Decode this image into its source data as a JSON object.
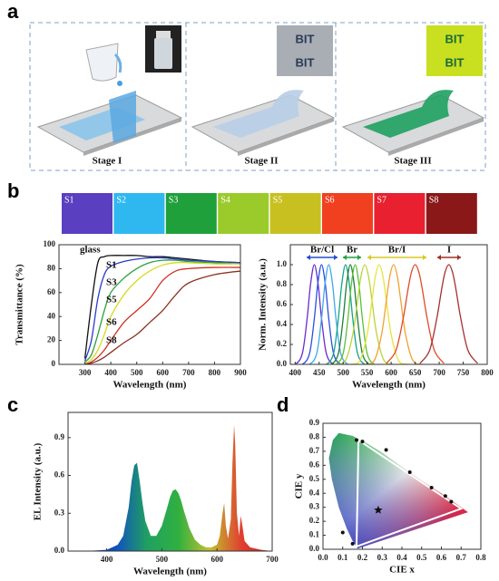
{
  "labels": {
    "a": "a",
    "b": "b",
    "c": "c",
    "d": "d"
  },
  "stages": [
    "Stage I",
    "Stage II",
    "Stage III"
  ],
  "insets": [
    "BIT",
    "BIT",
    "BIT",
    "BIT"
  ],
  "samples": {
    "names": [
      "S1",
      "S2",
      "S3",
      "S4",
      "S5",
      "S6",
      "S7",
      "S8"
    ],
    "colors": [
      "#5a3fc0",
      "#2fb8f0",
      "#1fa03a",
      "#9acb2a",
      "#c8c020",
      "#f04020",
      "#e82030",
      "#8a1818"
    ]
  },
  "chart_data": [
    {
      "type": "line",
      "xlabel": "Wavelength (nm)",
      "ylabel": "Transmittance (%)",
      "xlim": [
        200,
        900
      ],
      "ylim": [
        0,
        100
      ],
      "xticks": [
        300,
        400,
        500,
        600,
        700,
        800,
        900
      ],
      "yticks": [
        0,
        20,
        40,
        60,
        80,
        100
      ],
      "x": [
        300,
        325,
        350,
        375,
        400,
        450,
        500,
        550,
        600,
        650,
        700,
        800,
        900
      ],
      "series": [
        {
          "name": "glass",
          "color": "#111111",
          "values": [
            5,
            50,
            85,
            90,
            91,
            91,
            91,
            90,
            90,
            89,
            88,
            86,
            85
          ]
        },
        {
          "name": "S1",
          "color": "#2a3ad0",
          "values": [
            3,
            20,
            55,
            75,
            82,
            86,
            88,
            89,
            89,
            88,
            87,
            86,
            85
          ]
        },
        {
          "name": "S3",
          "color": "#2aa03a",
          "values": [
            2,
            8,
            25,
            45,
            60,
            72,
            80,
            85,
            87,
            87,
            86,
            85,
            84
          ]
        },
        {
          "name": "S5",
          "color": "#d8d820",
          "values": [
            1,
            4,
            12,
            25,
            40,
            58,
            70,
            78,
            83,
            85,
            85,
            84,
            84
          ]
        },
        {
          "name": "S6",
          "color": "#d03020",
          "values": [
            0,
            2,
            6,
            12,
            20,
            35,
            45,
            55,
            70,
            78,
            80,
            81,
            81
          ]
        },
        {
          "name": "S8",
          "color": "#8a3020",
          "values": [
            0,
            1,
            3,
            6,
            10,
            18,
            25,
            35,
            45,
            58,
            68,
            75,
            78
          ]
        }
      ]
    },
    {
      "type": "line",
      "xlabel": "Wavelength (nm)",
      "ylabel": "Norm. Intensity (a.u.)",
      "xlim": [
        390,
        800
      ],
      "ylim": [
        0,
        1.2
      ],
      "xticks": [
        400,
        450,
        500,
        550,
        600,
        650,
        700,
        750,
        800
      ],
      "yticks": [
        {
          "value": 0,
          "label": "0.0"
        },
        0.2,
        0.4,
        0.6,
        0.8,
        {
          "value": 1,
          "label": "1.0"
        }
      ],
      "annotations": [
        {
          "text": "Br/Cl",
          "color": "#2050d0"
        },
        {
          "text": "Br",
          "color": "#20a040"
        },
        {
          "text": "Br/I",
          "color": "#d8c820"
        },
        {
          "text": "I",
          "color": "#a03020"
        }
      ],
      "series": [
        {
          "color": "#6a2bd0",
          "x": [
            380,
            400,
            415,
            425,
            432,
            440,
            448,
            455,
            465,
            480,
            500
          ],
          "values": [
            0,
            0,
            0.11,
            0.46,
            0.8,
            1,
            0.8,
            0.46,
            0.11,
            0,
            0
          ]
        },
        {
          "color": "#2a4fe0",
          "x": [
            395,
            415,
            430,
            440,
            447,
            455,
            463,
            470,
            480,
            495,
            515
          ],
          "values": [
            0,
            0,
            0.11,
            0.46,
            0.8,
            1,
            0.8,
            0.46,
            0.11,
            0,
            0
          ]
        },
        {
          "color": "#3fa8ea",
          "x": [
            410,
            430,
            445,
            455,
            462,
            470,
            478,
            485,
            495,
            510,
            530
          ],
          "values": [
            0,
            0,
            0.11,
            0.46,
            0.8,
            1,
            0.8,
            0.46,
            0.11,
            0,
            0
          ]
        },
        {
          "color": "#15a38a",
          "x": [
            445,
            465,
            480,
            490,
            497,
            505,
            513,
            520,
            530,
            545,
            565
          ],
          "values": [
            0,
            0,
            0.11,
            0.46,
            0.8,
            1,
            0.8,
            0.46,
            0.11,
            0,
            0
          ]
        },
        {
          "color": "#1f7f3a",
          "x": [
            455,
            475,
            490,
            500,
            507,
            515,
            523,
            530,
            540,
            555,
            575
          ],
          "values": [
            0,
            0,
            0.11,
            0.46,
            0.8,
            1,
            0.8,
            0.46,
            0.11,
            0,
            0
          ]
        },
        {
          "color": "#5cbf3a",
          "x": [
            465,
            485,
            500,
            510,
            517,
            525,
            533,
            540,
            550,
            565,
            585
          ],
          "values": [
            0,
            0,
            0.11,
            0.46,
            0.8,
            1,
            0.8,
            0.46,
            0.11,
            0,
            0
          ]
        },
        {
          "color": "#b8d43a",
          "x": [
            485,
            505,
            520,
            530,
            537,
            545,
            553,
            560,
            570,
            585,
            605
          ],
          "values": [
            0,
            0.04,
            0.3,
            0.64,
            0.88,
            1,
            0.88,
            0.64,
            0.3,
            0.04,
            0
          ]
        },
        {
          "color": "#e6e43a",
          "x": [
            515,
            535,
            550,
            560,
            567,
            575,
            583,
            590,
            600,
            615,
            635
          ],
          "values": [
            0,
            0.04,
            0.3,
            0.64,
            0.88,
            1,
            0.88,
            0.64,
            0.3,
            0.04,
            0
          ]
        },
        {
          "color": "#f2a030",
          "x": [
            545,
            565,
            580,
            590,
            597,
            605,
            613,
            620,
            630,
            645,
            665
          ],
          "values": [
            0,
            0.04,
            0.3,
            0.64,
            0.88,
            1,
            0.88,
            0.64,
            0.3,
            0.04,
            0
          ]
        },
        {
          "color": "#e24a2a",
          "x": [
            590,
            610,
            625,
            635,
            642,
            650,
            658,
            665,
            675,
            690,
            710
          ],
          "values": [
            0.01,
            0.14,
            0.46,
            0.75,
            0.92,
            1,
            0.92,
            0.75,
            0.46,
            0.14,
            0.01
          ]
        },
        {
          "color": "#a83030",
          "x": [
            660,
            680,
            695,
            705,
            712,
            720,
            728,
            735,
            745,
            760,
            780
          ],
          "values": [
            0.01,
            0.14,
            0.46,
            0.75,
            0.92,
            1,
            0.92,
            0.75,
            0.46,
            0.14,
            0.01
          ]
        }
      ]
    },
    {
      "type": "area",
      "xlabel": "Wavelength (nm)",
      "ylabel": "EL Intensity (a.u.)",
      "xlim": [
        330,
        700
      ],
      "ylim": [
        0,
        1.1
      ],
      "xticks": [
        400,
        500,
        600,
        700
      ],
      "yticks": [
        {
          "value": 0,
          "label": "0.0"
        },
        0.3,
        0.6,
        0.9
      ],
      "colors": [
        "#2030a0",
        "#1050c0",
        "#20a060",
        "#30b040",
        "#c0c030",
        "#e04030",
        "#d02020"
      ],
      "x": [
        360,
        400,
        420,
        430,
        440,
        445,
        450,
        455,
        460,
        465,
        470,
        480,
        490,
        500,
        510,
        515,
        520,
        525,
        530,
        535,
        540,
        550,
        560,
        570,
        580,
        590,
        600,
        605,
        610,
        613,
        616,
        620,
        625,
        628,
        631,
        633,
        636,
        640,
        643,
        646,
        650,
        660,
        680,
        700
      ],
      "values": [
        0,
        0.01,
        0.05,
        0.12,
        0.35,
        0.55,
        0.68,
        0.7,
        0.55,
        0.38,
        0.24,
        0.12,
        0.12,
        0.2,
        0.35,
        0.43,
        0.48,
        0.49,
        0.46,
        0.4,
        0.32,
        0.18,
        0.09,
        0.05,
        0.03,
        0.03,
        0.05,
        0.12,
        0.3,
        0.38,
        0.2,
        0.1,
        0.25,
        0.7,
        1.0,
        0.85,
        0.3,
        0.12,
        0.28,
        0.2,
        0.08,
        0.03,
        0.01,
        0
      ]
    },
    {
      "type": "scatter",
      "xlabel": "CIE x",
      "ylabel": "CIE y",
      "xlim": [
        0,
        0.8
      ],
      "ylim": [
        0,
        0.9
      ],
      "xticks": [
        {
          "value": 0,
          "label": "0.0"
        },
        0.1,
        0.2,
        0.3,
        0.4,
        0.5,
        0.6,
        0.7,
        0.8
      ],
      "yticks": [
        {
          "value": 0,
          "label": "0.0"
        },
        0.1,
        0.2,
        0.3,
        0.4,
        0.5,
        0.6,
        0.7,
        0.8,
        0.9
      ],
      "locus_colors": [
        "#20b040",
        "#f0f0e8",
        "#e02840",
        "#3040c0"
      ],
      "locus": {
        "x": [
          0.175,
          0.17,
          0.15,
          0.12,
          0.08,
          0.045,
          0.03,
          0.05,
          0.08,
          0.15,
          0.23,
          0.3,
          0.4,
          0.5,
          0.6,
          0.7,
          0.735
        ],
        "y": [
          0.005,
          0.02,
          0.06,
          0.15,
          0.3,
          0.5,
          0.65,
          0.78,
          0.83,
          0.81,
          0.75,
          0.69,
          0.59,
          0.49,
          0.4,
          0.3,
          0.265
        ]
      },
      "gamut": {
        "x": [
          0.18,
          0.7,
          0.17
        ],
        "y": [
          0.78,
          0.29,
          0.02
        ]
      },
      "points": {
        "color": "#111111",
        "x": [
          0.17,
          0.2,
          0.32,
          0.44,
          0.55,
          0.62,
          0.65,
          0.1,
          0.15
        ],
        "y": [
          0.78,
          0.77,
          0.71,
          0.55,
          0.44,
          0.38,
          0.34,
          0.12,
          0.04
        ]
      },
      "star": {
        "x": 0.28,
        "y": 0.28
      }
    }
  ]
}
